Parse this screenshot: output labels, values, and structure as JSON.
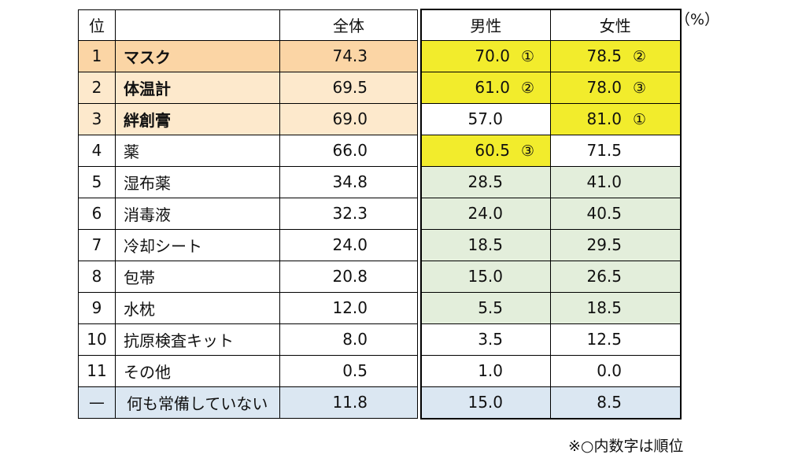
{
  "unit_label": "（%）",
  "note": "※○内数字は順位",
  "headers": {
    "rank": "位",
    "item": "",
    "all": "全体",
    "male": "男性",
    "female": "女性"
  },
  "rows": [
    {
      "rank": "1",
      "item": "マスク",
      "all": "74.3",
      "male": "70.0",
      "male_mark": "①",
      "female": "78.5",
      "female_mark": "②"
    },
    {
      "rank": "2",
      "item": "体温計",
      "all": "69.5",
      "male": "61.0",
      "male_mark": "②",
      "female": "78.0",
      "female_mark": "③"
    },
    {
      "rank": "3",
      "item": "絆創膏",
      "all": "69.0",
      "male": "57.0",
      "male_mark": "",
      "female": "81.0",
      "female_mark": "①"
    },
    {
      "rank": "4",
      "item": "薬",
      "all": "66.0",
      "male": "60.5",
      "male_mark": "③",
      "female": "71.5",
      "female_mark": ""
    },
    {
      "rank": "5",
      "item": "湿布薬",
      "all": "34.8",
      "male": "28.5",
      "male_mark": "",
      "female": "41.0",
      "female_mark": ""
    },
    {
      "rank": "6",
      "item": "消毒液",
      "all": "32.3",
      "male": "24.0",
      "male_mark": "",
      "female": "40.5",
      "female_mark": ""
    },
    {
      "rank": "7",
      "item": "冷却シート",
      "all": "24.0",
      "male": "18.5",
      "male_mark": "",
      "female": "29.5",
      "female_mark": ""
    },
    {
      "rank": "8",
      "item": "包帯",
      "all": "20.8",
      "male": "15.0",
      "male_mark": "",
      "female": "26.5",
      "female_mark": ""
    },
    {
      "rank": "9",
      "item": "水枕",
      "all": "12.0",
      "male": "5.5",
      "male_mark": "",
      "female": "18.5",
      "female_mark": ""
    },
    {
      "rank": "10",
      "item": "抗原検査キット",
      "all": "8.0",
      "male": "3.5",
      "male_mark": "",
      "female": "12.5",
      "female_mark": ""
    },
    {
      "rank": "11",
      "item": "その他",
      "all": "0.5",
      "male": "1.0",
      "male_mark": "",
      "female": "0.0",
      "female_mark": ""
    },
    {
      "rank": "—",
      "item": "何も常備していない",
      "all": "11.8",
      "male": "15.0",
      "male_mark": "",
      "female": "8.5",
      "female_mark": ""
    }
  ],
  "colors": {
    "top1": "#fbd5a5",
    "top23": "#fde9cc",
    "gender_top3": "#f2ec2c",
    "green": "#e3eedb",
    "none_row": "#dbe7f2"
  }
}
